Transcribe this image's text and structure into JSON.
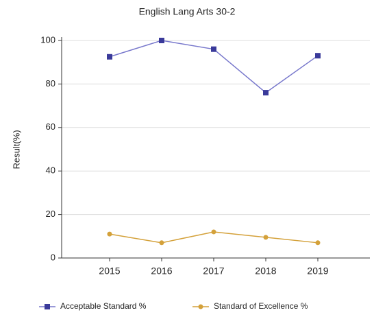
{
  "chart_data": {
    "type": "line",
    "title": "English Lang Arts 30-2",
    "y_label": "Result(%)",
    "categories": [
      "2015",
      "2016",
      "2017",
      "2018",
      "2019"
    ],
    "series": [
      {
        "name": "Acceptable Standard %",
        "color": "#3a3a9a",
        "line_color": "#7878cc",
        "values": [
          92.5,
          100,
          96,
          76,
          93
        ]
      },
      {
        "name": "Standard of Excellence %",
        "color": "#d4a13a",
        "line_color": "#d4a13a",
        "values": [
          11,
          7,
          12,
          9.5,
          7
        ]
      }
    ],
    "ylim": [
      0,
      100
    ],
    "yticks": [
      0,
      20,
      40,
      60,
      80,
      100
    ],
    "grid": true,
    "legend": "bottom"
  }
}
